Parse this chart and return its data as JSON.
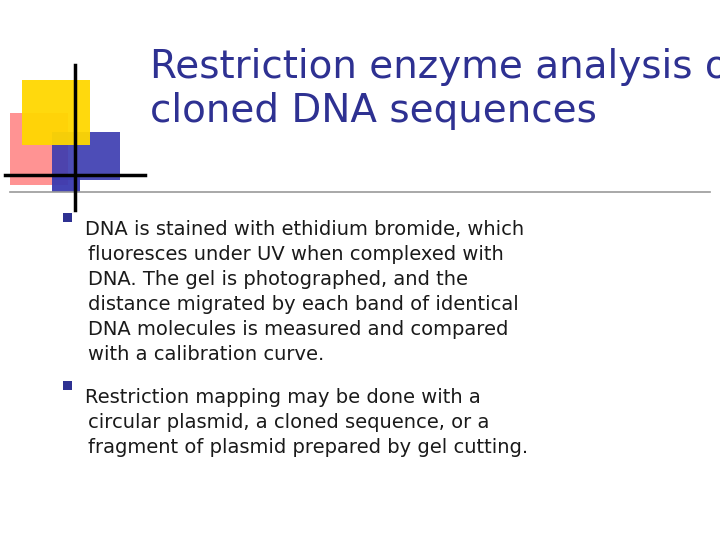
{
  "title_line1": "Restriction enzyme analysis of",
  "title_line2": "cloned DNA sequences",
  "title_color": "#2E3192",
  "title_fontsize": 28,
  "background_color": "#FFFFFF",
  "bullet_color": "#1a1a1a",
  "bullet_marker_color": "#2E3192",
  "bullet_fontsize": 14,
  "bullet1_lines": [
    "DNA is stained with ethidium bromide, which",
    "fluoresces under UV when complexed with",
    "DNA. The gel is photographed, and the",
    "distance migrated by each band of identical",
    "DNA molecules is measured and compared",
    "with a calibration curve."
  ],
  "bullet2_lines": [
    "Restriction mapping may be done with a",
    "circular plasmid, a cloned sequence, or a",
    "fragment of plasmid prepared by gel cutting."
  ],
  "separator_color": "#999999",
  "logo_yellow_color": "#FFD700",
  "logo_red_color": "#FF6666",
  "logo_blue_color": "#3A3AB0"
}
